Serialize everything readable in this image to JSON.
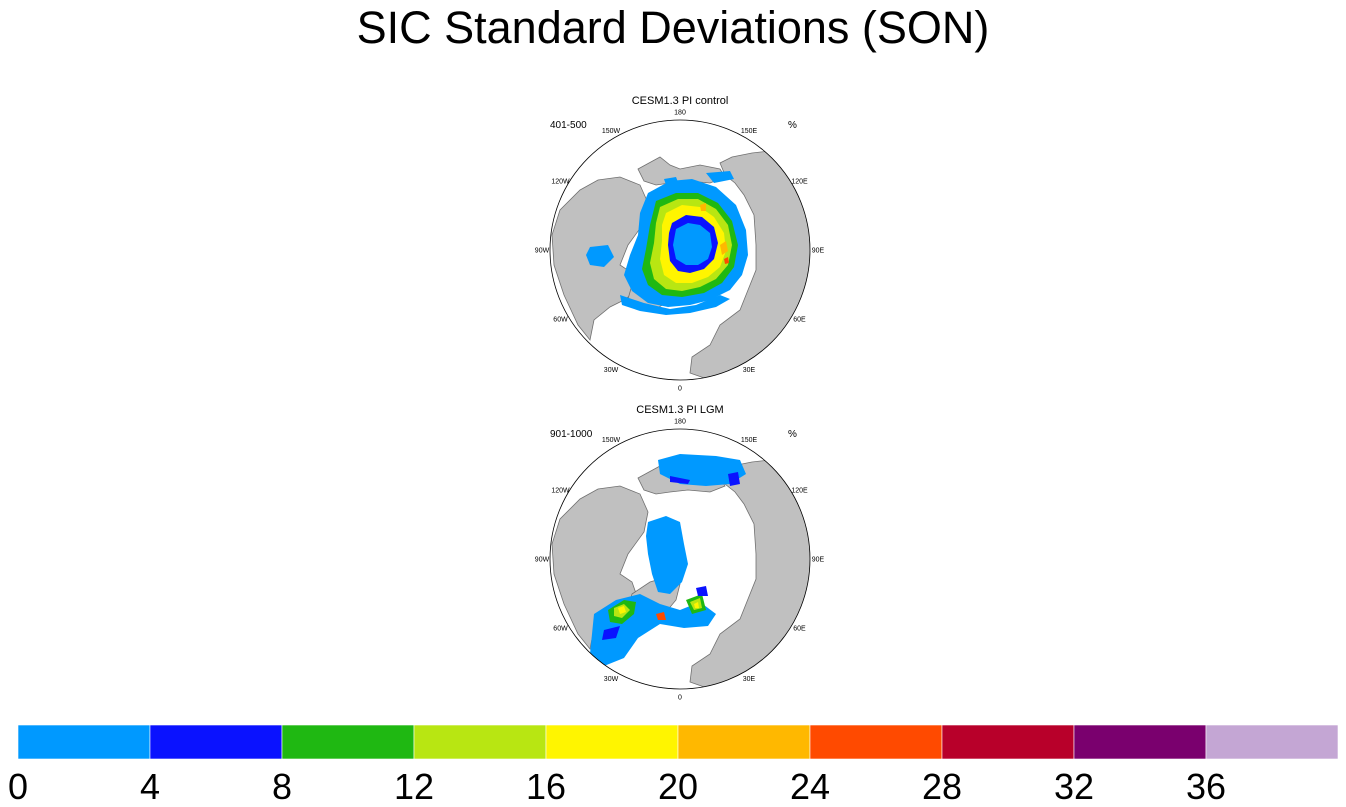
{
  "title": "SIC Standard Deviations (SON)",
  "chart_data": {
    "type": "heatmap",
    "projection": "north polar stereographic",
    "units": "%",
    "panels": [
      {
        "title": "CESM1.3 PI control",
        "left_label": "401-500",
        "right_label": "%",
        "description_of_field": "sea ice concentration standard deviation, autumn (SON)"
      },
      {
        "title": "CESM1.3 PI LGM",
        "left_label": "901-1000",
        "right_label": "%",
        "description_of_field": "sea ice concentration standard deviation, autumn (SON)"
      }
    ],
    "lon_labels": [
      "180",
      "150E",
      "120E",
      "90E",
      "60E",
      "30E",
      "0",
      "30W",
      "60W",
      "90W",
      "120W",
      "150W"
    ],
    "colorbar": {
      "levels": [
        0,
        4,
        8,
        12,
        16,
        20,
        24,
        28,
        32,
        36
      ],
      "colors": [
        "#0099ff",
        "#0a12ff",
        "#1fb812",
        "#b8e612",
        "#fff500",
        "#ffb800",
        "#ff4a00",
        "#b8002a",
        "#7a006e",
        "#c4a6d4"
      ]
    }
  },
  "colors": {
    "land": "#c0c0c0",
    "coast": "#707070",
    "ocean": "#ffffff"
  }
}
